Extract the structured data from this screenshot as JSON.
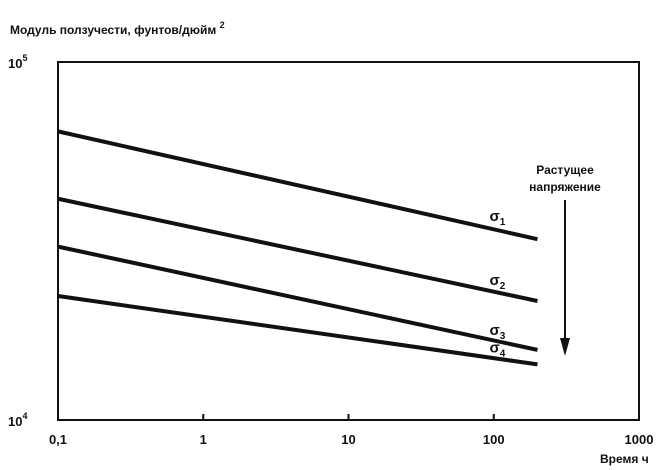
{
  "chart_data": {
    "type": "line",
    "title": "",
    "ylabel": {
      "text": "Модуль ползучести, фунтов/дюйм",
      "sup": "2"
    },
    "xlabel": "Время ч",
    "xscale": "log",
    "yscale": "log",
    "xlim": [
      0.1,
      1000
    ],
    "ylim": [
      10000,
      100000
    ],
    "x_tick_labels": [
      "0,1",
      "1",
      "10",
      "100",
      "1000"
    ],
    "x_ticks": [
      0.1,
      1,
      10,
      100,
      1000
    ],
    "y_tick_labels": [
      {
        "base": "10",
        "exp": "5",
        "value": 100000
      },
      {
        "base": "10",
        "exp": "4",
        "value": 10000
      }
    ],
    "grid": false,
    "series": [
      {
        "name": "σ1",
        "label_base": "σ",
        "label_sub": "1",
        "x": [
          0.1,
          200
        ],
        "y": [
          64000,
          32000
        ]
      },
      {
        "name": "σ2",
        "label_base": "σ",
        "label_sub": "2",
        "x": [
          0.1,
          200
        ],
        "y": [
          41500,
          21500
        ]
      },
      {
        "name": "σ3",
        "label_base": "σ",
        "label_sub": "3",
        "x": [
          0.1,
          200
        ],
        "y": [
          30500,
          15700
        ]
      },
      {
        "name": "σ4",
        "label_base": "σ",
        "label_sub": "4",
        "x": [
          0.1,
          200
        ],
        "y": [
          22200,
          14300
        ]
      }
    ],
    "annotation": {
      "lines": [
        "Растущее",
        "напряжение"
      ],
      "arrow": "down"
    }
  }
}
